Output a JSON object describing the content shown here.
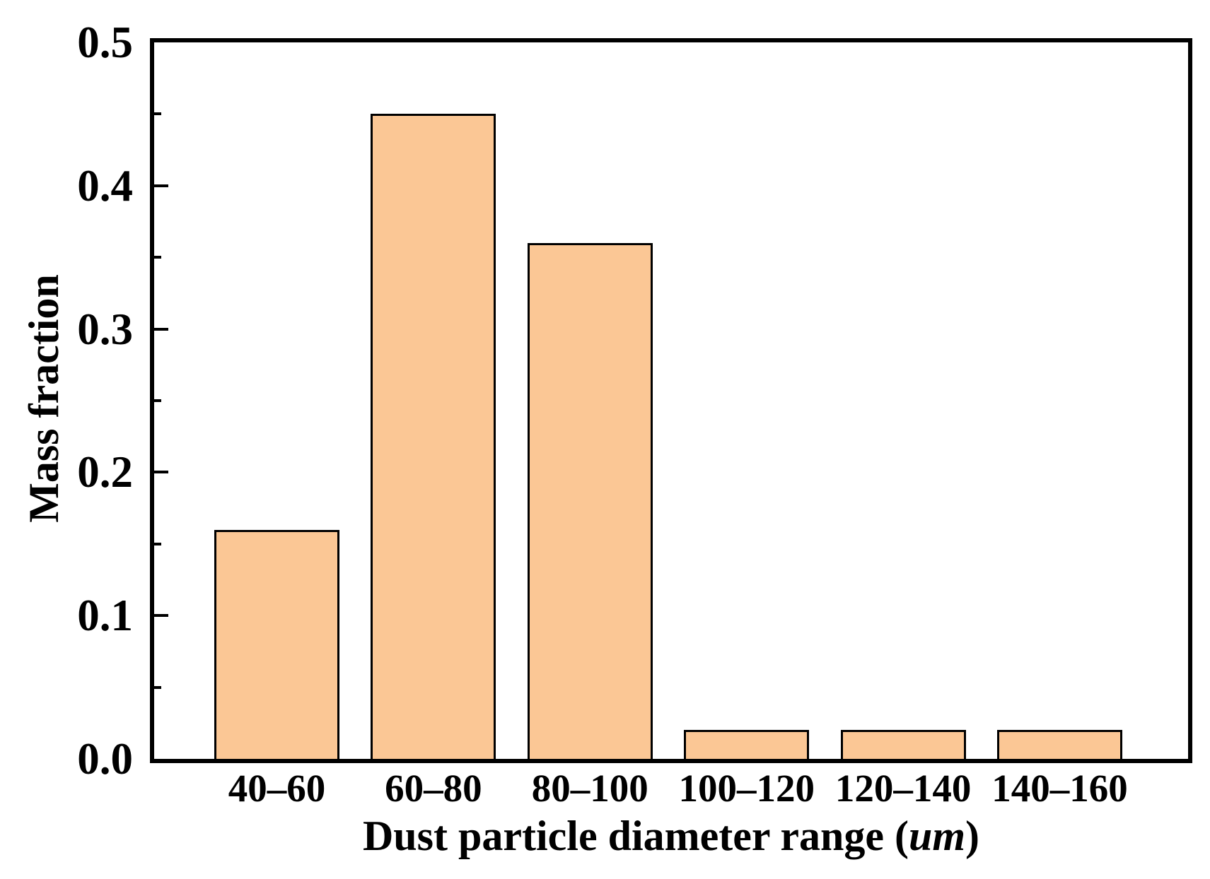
{
  "figure": {
    "background_color": "#FFFFFF",
    "text_color": "#000000"
  },
  "chart_data": {
    "type": "bar",
    "title": "",
    "categories": [
      "40–60",
      "60–80",
      "80–100",
      "100–120",
      "120–140",
      "140–160"
    ],
    "values": [
      0.16,
      0.45,
      0.36,
      0.02,
      0.02,
      0.02
    ],
    "xlabel": "Dust particle diameter range (um)",
    "xlabel_parts": {
      "prefix": "Dust particle diameter range (",
      "italic": "um",
      "suffix": ")"
    },
    "ylabel": "Mass fraction",
    "ylim": [
      0,
      0.5
    ],
    "ytick_values": [
      0.0,
      0.1,
      0.2,
      0.3,
      0.4,
      0.5
    ],
    "ytick_labels": [
      "0.0",
      "0.1",
      "0.2",
      "0.3",
      "0.4",
      "0.5"
    ],
    "minor_tick_values": [
      0.05,
      0.15,
      0.25,
      0.35,
      0.45
    ],
    "grid": false,
    "legend": "none",
    "tick_direction": "in",
    "bar_fill_color": "#FBC795",
    "bar_border_color": "#000000",
    "axis_color": "#000000"
  }
}
